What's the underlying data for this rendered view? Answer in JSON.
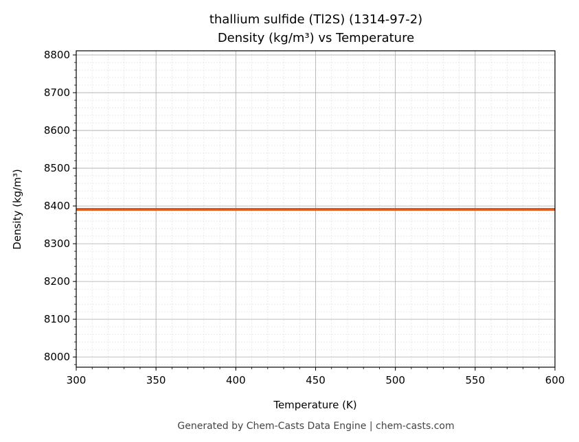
{
  "chart_data": {
    "type": "line",
    "title": "thallium sulfide (Tl2S) (1314-97-2)",
    "subtitle": "Density (kg/m³) vs Temperature",
    "xlabel": "Temperature (K)",
    "ylabel": "Density (kg/m³)",
    "xlim": [
      300,
      600
    ],
    "ylim": [
      7973,
      8811
    ],
    "xticks": [
      300,
      350,
      400,
      450,
      500,
      550,
      600
    ],
    "yticks": [
      8000,
      8100,
      8200,
      8300,
      8400,
      8500,
      8600,
      8700,
      8800
    ],
    "grid": true,
    "series": [
      {
        "x": [
          300,
          600
        ],
        "y": [
          8391,
          8391
        ],
        "color": "#e05a1f"
      }
    ]
  },
  "footer": "Generated by Chem-Casts Data Engine | chem-casts.com"
}
